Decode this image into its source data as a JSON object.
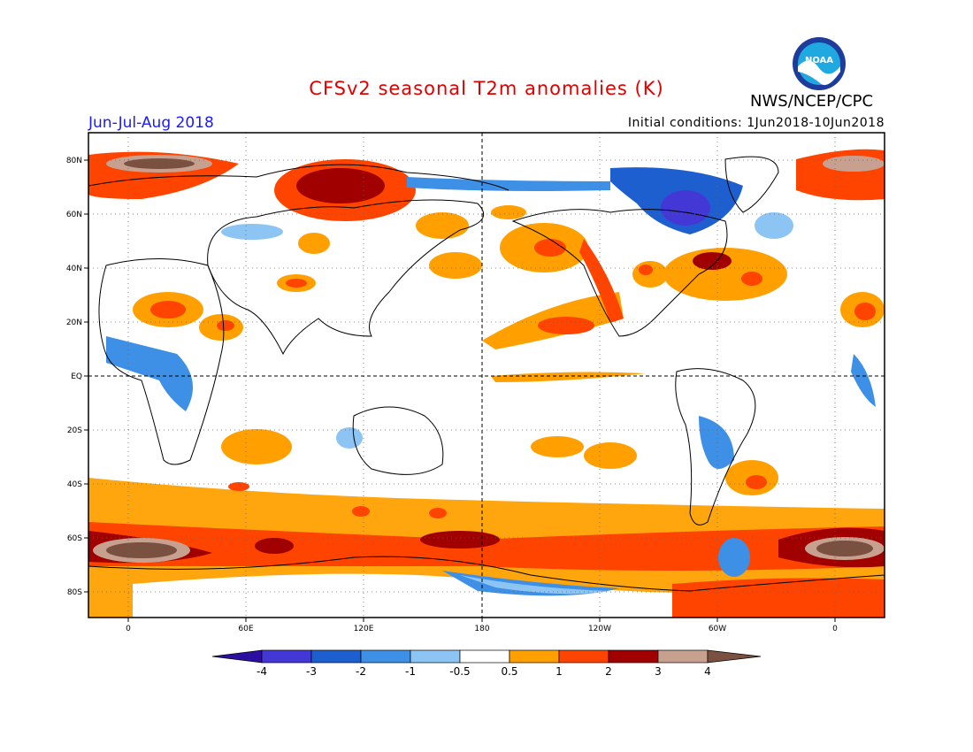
{
  "title": "CFSv2 seasonal T2m anomalies (K)",
  "period": "Jun-Jul-Aug 2018",
  "initial_conditions": "Initial conditions: 1Jun2018-10Jun2018",
  "agency": "NWS/NCEP/CPC",
  "logo_text": "NOAA",
  "lat_ticks": [
    "80N",
    "60N",
    "40N",
    "20N",
    "EQ",
    "20S",
    "40S",
    "60S",
    "80S"
  ],
  "lon_ticks": [
    "0",
    "60E",
    "120E",
    "180",
    "120W",
    "60W",
    "0"
  ],
  "colorbar": {
    "labels": [
      "-4",
      "-3",
      "-2",
      "-1",
      "-0.5",
      "0.5",
      "1",
      "2",
      "3",
      "4"
    ],
    "colors": [
      "#2c0fa0",
      "#4338d6",
      "#1e5fd0",
      "#3e8fe6",
      "#8cc4f4",
      "#ffffff",
      "#ffa000",
      "#ff4400",
      "#a00000",
      "#c8a090",
      "#7a5040"
    ]
  }
}
